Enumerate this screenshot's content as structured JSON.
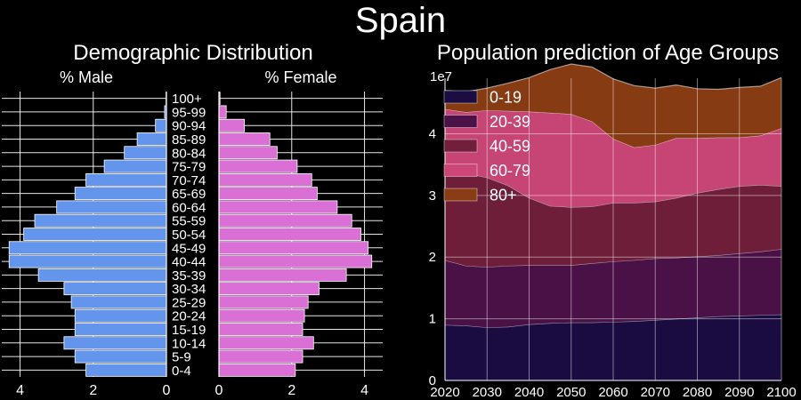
{
  "title": "Spain",
  "colors": {
    "background": "#000000",
    "male": "#6495ed",
    "female": "#da70d6",
    "grid": "#ffffff",
    "text": "#ffffff"
  },
  "chart_data": [
    {
      "type": "bar",
      "orientation": "horizontal",
      "title": "Demographic Distribution",
      "categories": [
        "0-4",
        "5-9",
        "10-14",
        "15-19",
        "20-24",
        "25-29",
        "30-34",
        "35-39",
        "40-44",
        "45-49",
        "50-54",
        "55-59",
        "60-64",
        "65-69",
        "70-74",
        "75-79",
        "80-84",
        "85-89",
        "90-94",
        "95-99",
        "100+"
      ],
      "male": {
        "xlabel": "% Male",
        "xlim": [
          4.5,
          0
        ],
        "xticks": [
          4,
          2,
          0
        ],
        "values": [
          2.2,
          2.5,
          2.8,
          2.5,
          2.5,
          2.6,
          2.8,
          3.5,
          4.3,
          4.3,
          3.9,
          3.6,
          3.0,
          2.5,
          2.2,
          1.7,
          1.15,
          0.8,
          0.3,
          0.05,
          0.01
        ]
      },
      "female": {
        "xlabel": "% Female",
        "xlim": [
          0,
          4.5
        ],
        "xticks": [
          0,
          2,
          4
        ],
        "values": [
          2.1,
          2.3,
          2.6,
          2.3,
          2.35,
          2.45,
          2.75,
          3.5,
          4.2,
          4.1,
          3.9,
          3.65,
          3.25,
          2.7,
          2.55,
          2.15,
          1.6,
          1.4,
          0.7,
          0.2,
          0.03
        ]
      },
      "grid": true
    },
    {
      "type": "area",
      "stacked": true,
      "title": "Population prediction of Age Groups",
      "offset_label": "1e7",
      "x": [
        2020,
        2025,
        2030,
        2035,
        2040,
        2045,
        2050,
        2055,
        2060,
        2065,
        2070,
        2075,
        2080,
        2085,
        2090,
        2095,
        2100
      ],
      "xlim": [
        2020,
        2100
      ],
      "xticks": [
        2020,
        2030,
        2040,
        2050,
        2060,
        2070,
        2080,
        2090,
        2100
      ],
      "ylim": [
        0,
        4.9
      ],
      "yticks": [
        0,
        1,
        2,
        3,
        4
      ],
      "legend_position": "top-left",
      "grid": true,
      "series": [
        {
          "name": "0-19",
          "color": "#1b0c42",
          "values": [
            0.9,
            0.89,
            0.86,
            0.87,
            0.91,
            0.93,
            0.94,
            0.94,
            0.95,
            0.96,
            0.98,
            1.0,
            1.02,
            1.04,
            1.05,
            1.06,
            1.07
          ]
        },
        {
          "name": "20-39",
          "color": "#4b1248",
          "values": [
            1.05,
            0.97,
            0.98,
            0.99,
            0.96,
            0.94,
            0.93,
            0.96,
            0.98,
            0.99,
            1.0,
            0.99,
            0.99,
            0.99,
            1.01,
            1.03,
            1.06
          ]
        },
        {
          "name": "40-59",
          "color": "#721f3b",
          "values": [
            1.5,
            1.5,
            1.45,
            1.3,
            1.09,
            0.96,
            0.94,
            0.92,
            0.95,
            0.93,
            0.92,
            0.97,
            1.03,
            1.07,
            1.09,
            1.08,
            1.02
          ]
        },
        {
          "name": "60-79",
          "color": "#cc4778",
          "values": [
            0.95,
            0.99,
            1.09,
            1.21,
            1.4,
            1.51,
            1.51,
            1.38,
            1.04,
            0.9,
            0.92,
            0.97,
            0.89,
            0.84,
            0.79,
            0.8,
            0.94
          ]
        },
        {
          "name": "80+",
          "color": "#8a3d14",
          "values": [
            0.3,
            0.33,
            0.36,
            0.45,
            0.55,
            0.7,
            0.81,
            0.88,
            0.97,
            1.0,
            0.92,
            0.86,
            0.8,
            0.78,
            0.81,
            0.8,
            0.82
          ]
        }
      ]
    }
  ]
}
